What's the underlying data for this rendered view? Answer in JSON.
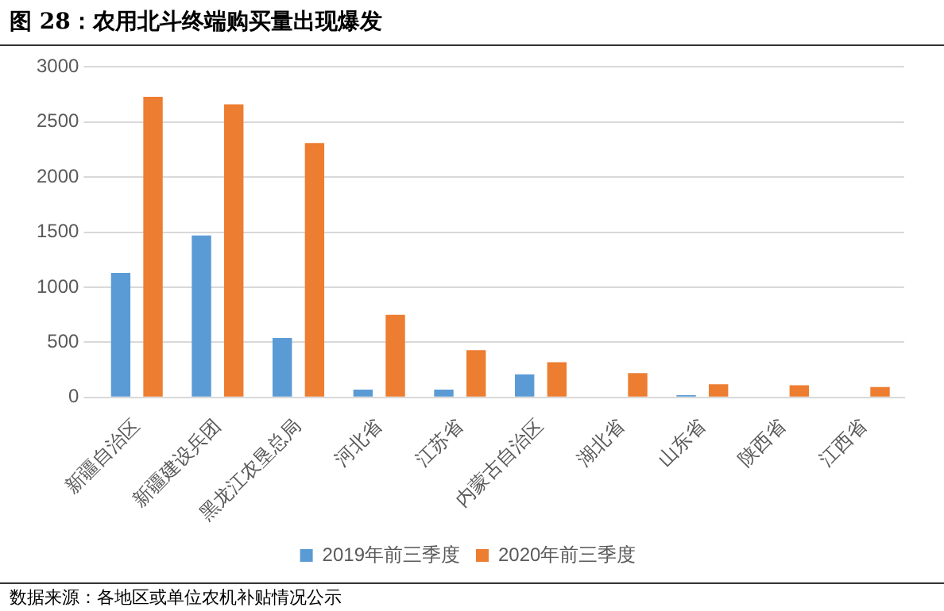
{
  "chart_data": {
    "type": "bar",
    "title": "图 28：农用北斗终端购买量出现爆发",
    "categories": [
      "新疆自治区",
      "新疆建设兵团",
      "黑龙江农垦总局",
      "河北省",
      "江苏省",
      "内蒙古自治区",
      "湖北省",
      "山东省",
      "陕西省",
      "江西省"
    ],
    "series": [
      {
        "name": "2019年前三季度",
        "color": "#5b9bd5",
        "values": [
          1130,
          1470,
          540,
          70,
          70,
          210,
          0,
          20,
          0,
          0
        ]
      },
      {
        "name": "2020年前三季度",
        "color": "#ed7d31",
        "values": [
          2730,
          2660,
          2310,
          750,
          430,
          320,
          220,
          120,
          110,
          95
        ]
      }
    ],
    "ylim": [
      0,
      3000
    ],
    "yticks": [
      0,
      500,
      1000,
      1500,
      2000,
      2500,
      3000
    ],
    "grid": "y",
    "legend": "bottom",
    "annotations": [
      "数据来源：各地区或单位农机补贴情况公示"
    ]
  }
}
